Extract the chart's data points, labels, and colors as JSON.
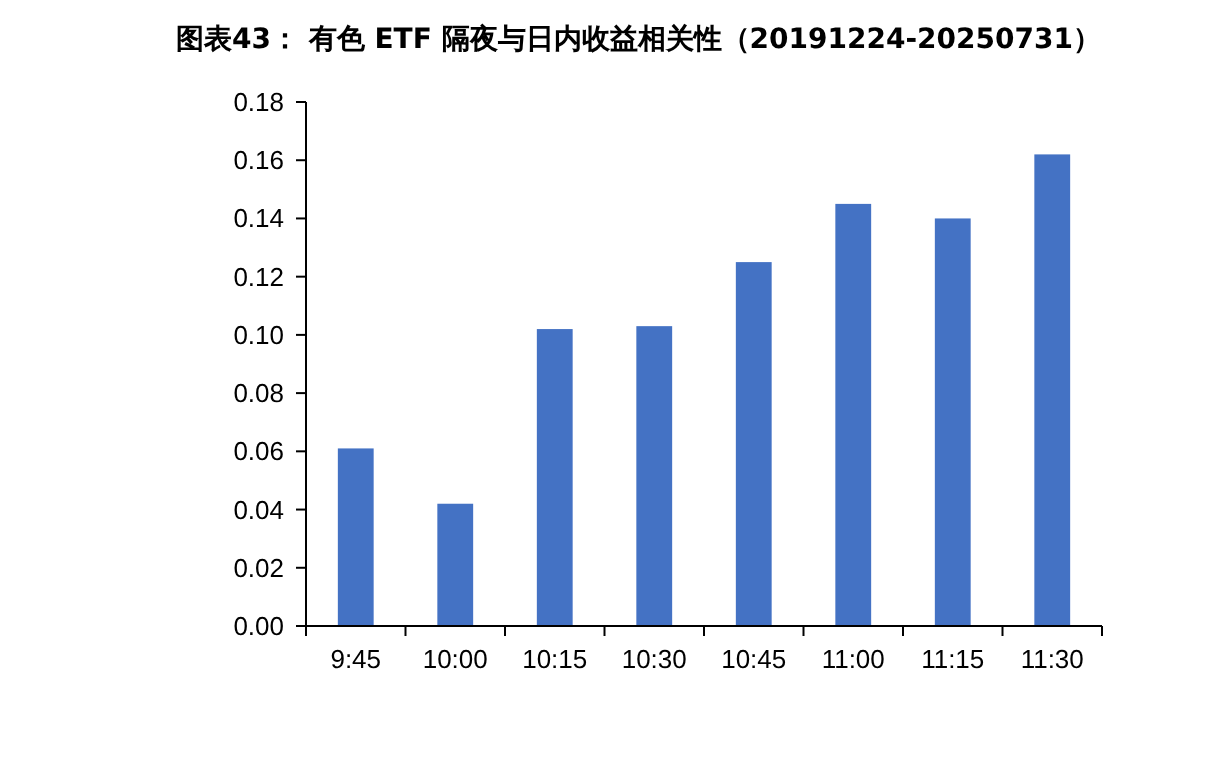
{
  "chart_data": {
    "type": "bar",
    "title": "图表43：  有色 ETF 隔夜与日内收益相关性（20191224-20250731）",
    "categories": [
      "9:45",
      "10:00",
      "10:15",
      "10:30",
      "10:45",
      "11:00",
      "11:15",
      "11:30"
    ],
    "values": [
      0.061,
      0.042,
      0.102,
      0.103,
      0.125,
      0.145,
      0.14,
      0.162
    ],
    "color": "#4472c4",
    "ylim": [
      0,
      0.18
    ],
    "yticks": [
      {
        "value": 0,
        "label": "0.00"
      },
      {
        "value": 0.02,
        "label": "0.02"
      },
      {
        "value": 0.04,
        "label": "0.04"
      },
      {
        "value": 0.06,
        "label": "0.06"
      },
      {
        "value": 0.08,
        "label": "0.08"
      },
      {
        "value": 0.1,
        "label": "0.10"
      },
      {
        "value": 0.12,
        "label": "0.12"
      },
      {
        "value": 0.14,
        "label": "0.14"
      },
      {
        "value": 0.16,
        "label": "0.16"
      },
      {
        "value": 0.18,
        "label": "0.18"
      }
    ],
    "grid": false
  }
}
